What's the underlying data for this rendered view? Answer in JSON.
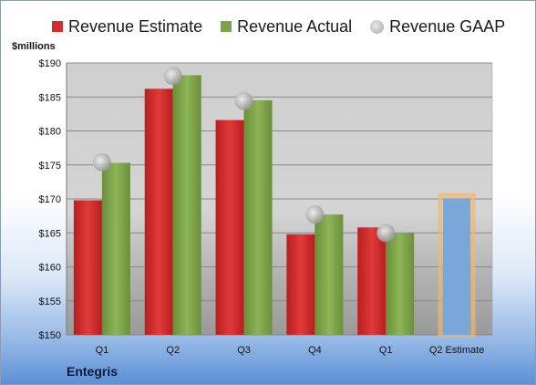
{
  "chart_data": {
    "type": "bar",
    "categories": [
      "Q1",
      "Q2",
      "Q3",
      "Q4",
      "Q1",
      "Q2 Estimate"
    ],
    "series": [
      {
        "name": "Revenue Estimate",
        "values": [
          169.8,
          186.2,
          181.6,
          164.8,
          165.8,
          null
        ],
        "color": "#d42b2b"
      },
      {
        "name": "Revenue Actual",
        "values": [
          175.3,
          188.2,
          184.5,
          167.7,
          165.0,
          null
        ],
        "color": "#7ea24a"
      },
      {
        "name": "Revenue GAAP",
        "values": [
          175.4,
          188.1,
          184.4,
          167.7,
          165.0,
          null
        ],
        "color": "#b8b8b8"
      }
    ],
    "estimate": {
      "category_index": 5,
      "value": 170.1,
      "color": "#7aa6d8",
      "glow": "#f5b66a"
    },
    "ylabel": "$millions",
    "ylim": [
      150,
      190
    ],
    "yticks": [
      150,
      155,
      160,
      165,
      170,
      175,
      180,
      185,
      190
    ],
    "ytick_labels": [
      "$150",
      "$155",
      "$160",
      "$165",
      "$170",
      "$175",
      "$180",
      "$185",
      "$190"
    ],
    "grid": true,
    "legend": "top"
  },
  "company": "Entegris"
}
